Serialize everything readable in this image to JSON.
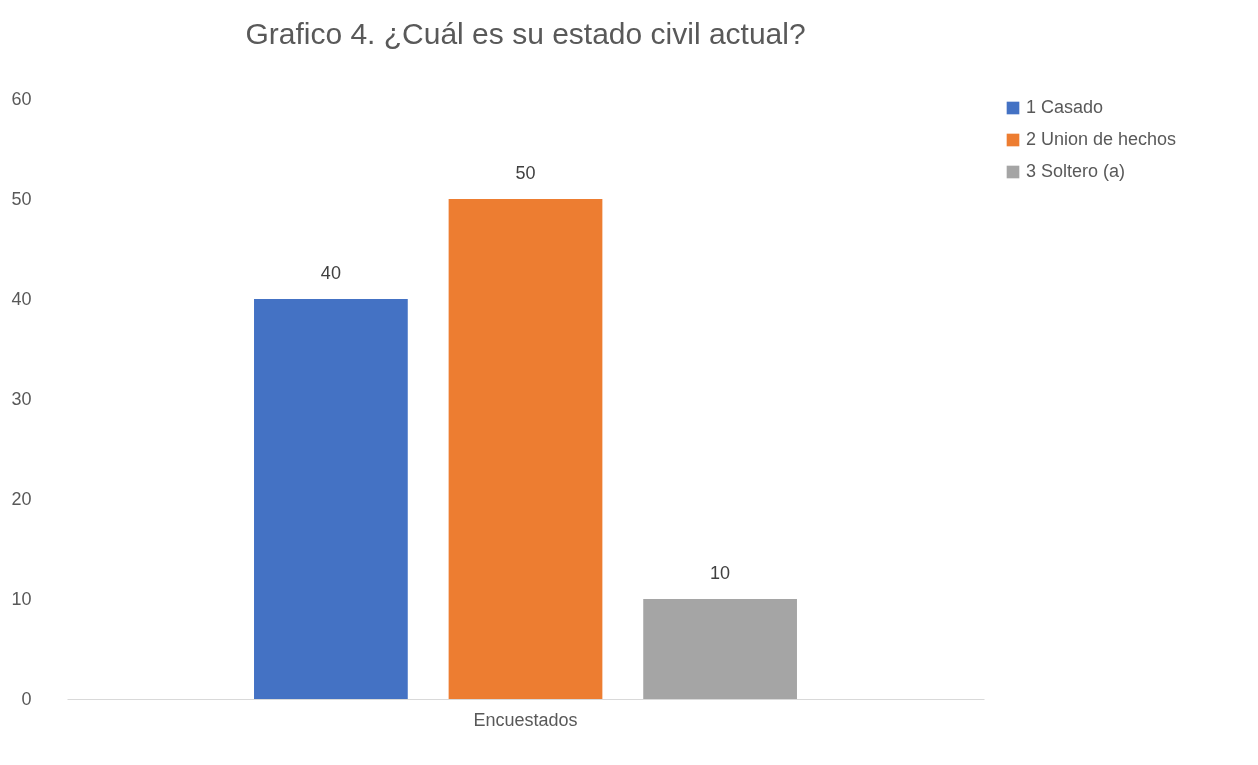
{
  "chart_data": {
    "type": "bar",
    "title": "Grafico 4. ¿Cuál es su estado civil actual?",
    "categories": [
      "Encuestados"
    ],
    "series": [
      {
        "name": "1 Casado",
        "color": "#4472c4",
        "values": [
          40
        ]
      },
      {
        "name": "2 Union de hechos",
        "color": "#ed7d31",
        "values": [
          50
        ]
      },
      {
        "name": "3 Soltero (a)",
        "color": "#a5a5a5",
        "values": [
          10
        ]
      }
    ],
    "ylim": [
      0,
      60
    ],
    "yticks": [
      0,
      10,
      20,
      30,
      40,
      50,
      60
    ],
    "data_labels": true,
    "legend": "right"
  }
}
